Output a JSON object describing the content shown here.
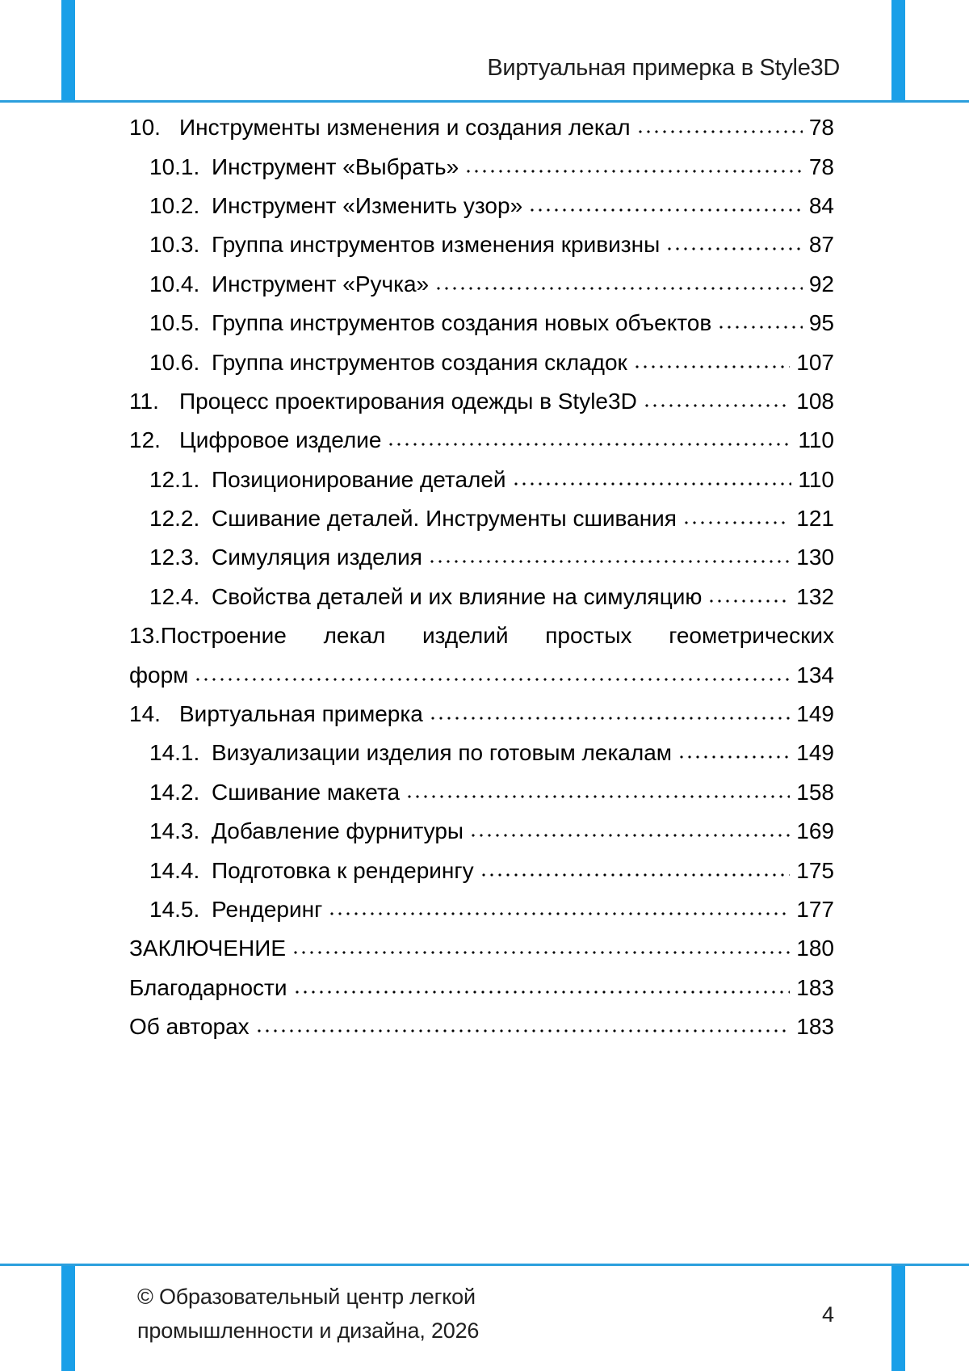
{
  "header": {
    "title": "Виртуальная примерка в Style3D"
  },
  "colors": {
    "accent_blue": "#1a9fe8",
    "rule_blue": "#2b9fdd",
    "text": "#000000"
  },
  "toc": {
    "rows": [
      {
        "num": "10.",
        "title": "Инструменты изменения и создания лекал",
        "page": "78"
      },
      {
        "num": "10.1.",
        "title": "Инструмент «Выбрать»",
        "page": "78"
      },
      {
        "num": "10.2.",
        "title": "Инструмент «Изменить узор»",
        "page": "84"
      },
      {
        "num": "10.3.",
        "title": "Группа инструментов изменения кривизны",
        "page": "87"
      },
      {
        "num": "10.4.",
        "title": "Инструмент «Ручка»",
        "page": "92"
      },
      {
        "num": "10.5.",
        "title": "Группа инструментов создания новых объектов",
        "page": "95"
      },
      {
        "num": "10.6.",
        "title": "Группа инструментов создания складок",
        "page": "107"
      },
      {
        "num": "11.",
        "title": "Процесс проектирования одежды в Style3D",
        "page": "108"
      },
      {
        "num": "12.",
        "title": "Цифровое изделие",
        "page": "110"
      },
      {
        "num": "12.1.",
        "title": "Позиционирование деталей",
        "page": "110"
      },
      {
        "num": "12.2.",
        "title": "Сшивание деталей. Инструменты сшивания",
        "page": "121"
      },
      {
        "num": "12.3.",
        "title": "Симуляция изделия",
        "page": "130"
      },
      {
        "num": "12.4.",
        "title": "Свойства деталей и их влияние на симуляцию",
        "page": "132"
      },
      {
        "text": "13.Построение лекал изделий простых геометрических"
      },
      {
        "title": "форм",
        "page": "134"
      },
      {
        "num": "14.",
        "title": "Виртуальная примерка",
        "page": "149"
      },
      {
        "num": "14.1.",
        "title": "Визуализации изделия по готовым лекалам",
        "page": "149"
      },
      {
        "num": "14.2.",
        "title": "Сшивание макета",
        "page": "158"
      },
      {
        "num": "14.3.",
        "title": "Добавление фурнитуры",
        "page": "169"
      },
      {
        "num": "14.4.",
        "title": "Подготовка к рендерингу",
        "page": "175"
      },
      {
        "num": "14.5.",
        "title": "Рендеринг",
        "page": "177"
      },
      {
        "title": "ЗАКЛЮЧЕНИЕ",
        "page": "180"
      },
      {
        "title": "Благодарности",
        "page": "183"
      },
      {
        "title": "Об авторах",
        "page": "183"
      }
    ]
  },
  "footer": {
    "line1": "© Образовательный центр легкой",
    "line2": "промышленности и дизайна, 2026",
    "page_number": "4"
  }
}
